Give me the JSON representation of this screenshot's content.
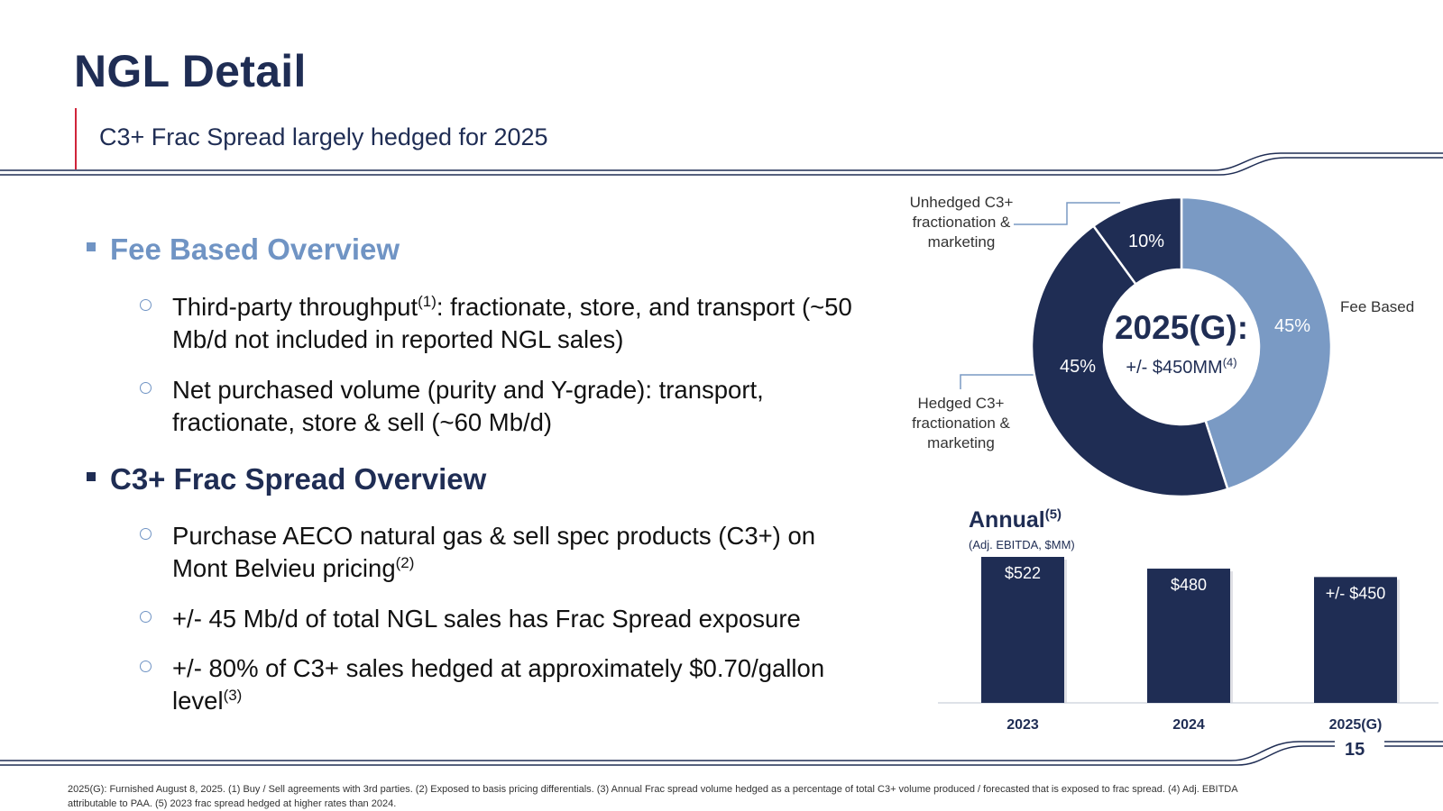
{
  "header": {
    "title": "NGL Detail",
    "subtitle": "C3+ Frac Spread largely hedged for 2025"
  },
  "sections": [
    {
      "heading": "Fee Based Overview",
      "bullets": [
        {
          "pre": "Third-party throughput",
          "sup": "(1)",
          "post": ": fractionate, store, and transport (~50 Mb/d not included in reported NGL sales)"
        },
        {
          "pre": "Net purchased volume (purity and Y-grade): transport, fractionate, store & sell (~60 Mb/d)",
          "sup": "",
          "post": ""
        }
      ]
    },
    {
      "heading": "C3+ Frac Spread Overview",
      "bullets": [
        {
          "pre": "Purchase AECO natural gas & sell spec products (C3+) on Mont Belvieu pricing",
          "sup": "(2)",
          "post": ""
        },
        {
          "pre": "+/- 45 Mb/d of total NGL sales has Frac Spread exposure",
          "sup": "",
          "post": ""
        },
        {
          "pre": "+/- 80% of C3+ sales hedged at approximately $0.70/gallon level",
          "sup": "(3)",
          "post": ""
        }
      ]
    }
  ],
  "donut": {
    "center_title": "2025(G):",
    "center_value": "+/- $450MM",
    "center_sup": "(4)",
    "labels": {
      "unhedged": "Unhedged C3+ fractionation & marketing",
      "hedged": "Hedged C3+ fractionation & marketing",
      "fee": "Fee Based"
    }
  },
  "annual": {
    "title": "Annual",
    "title_sup": "(5)",
    "subtitle": "(Adj. EBITDA, $MM)"
  },
  "page_number": "15",
  "footnote": "2025(G): Furnished August 8, 2025. (1) Buy / Sell agreements with 3rd parties. (2) Exposed to basis pricing differentials. (3) Annual Frac spread volume hedged as a percentage of total C3+ volume produced / forecasted that is exposed to frac spread. (4) Adj. EBITDA attributable to PAA. (5) 2023 frac spread hedged at higher rates than 2024.",
  "colors": {
    "navy": "#1f2d54",
    "light_blue": "#7a9ac4",
    "accent_red": "#d0243a"
  },
  "chart_data": [
    {
      "type": "pie",
      "title": "2025(G):",
      "slices": [
        {
          "name": "Fee Based",
          "value": 45,
          "label": "45%",
          "color": "#7a9ac4"
        },
        {
          "name": "Hedged C3+ fractionation & marketing",
          "value": 45,
          "label": "45%",
          "color": "#1f2d54"
        },
        {
          "name": "Unhedged C3+ fractionation & marketing",
          "value": 10,
          "label": "10%",
          "color": "#1f2d54"
        }
      ]
    },
    {
      "type": "bar",
      "title": "Annual",
      "subtitle": "(Adj. EBITDA, $MM)",
      "categories": [
        "2023",
        "2024",
        "2025(G)"
      ],
      "values": [
        522,
        480,
        450
      ],
      "data_labels": [
        "$522",
        "$480",
        "+/- $450"
      ],
      "color": "#1f2d54",
      "ylim": [
        0,
        522
      ]
    }
  ]
}
